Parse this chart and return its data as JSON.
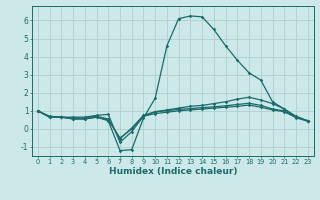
{
  "xlabel": "Humidex (Indice chaleur)",
  "background_color": "#cde8e8",
  "grid_color": "#b0cecf",
  "line_color": "#1a6b6b",
  "x": [
    0,
    1,
    2,
    3,
    4,
    5,
    6,
    7,
    8,
    9,
    10,
    11,
    12,
    13,
    14,
    15,
    16,
    17,
    18,
    19,
    20,
    21,
    22,
    23
  ],
  "line1": [
    1.0,
    0.7,
    0.65,
    0.55,
    0.55,
    0.65,
    0.45,
    -1.2,
    -1.15,
    0.6,
    1.7,
    4.6,
    6.1,
    6.25,
    6.2,
    5.5,
    4.6,
    3.8,
    3.1,
    2.7,
    1.5,
    1.1,
    0.65,
    0.45
  ],
  "line2": [
    1.0,
    0.65,
    0.65,
    0.65,
    0.65,
    0.75,
    0.8,
    -0.75,
    -0.15,
    0.7,
    0.95,
    1.05,
    1.15,
    1.25,
    1.3,
    1.4,
    1.5,
    1.65,
    1.75,
    1.6,
    1.4,
    1.1,
    0.7,
    0.45
  ],
  "line3": [
    1.0,
    0.65,
    0.65,
    0.6,
    0.6,
    0.7,
    0.55,
    -0.55,
    0.05,
    0.75,
    0.95,
    1.0,
    1.08,
    1.12,
    1.18,
    1.22,
    1.28,
    1.35,
    1.42,
    1.3,
    1.1,
    1.0,
    0.65,
    0.45
  ],
  "line4": [
    1.0,
    0.65,
    0.65,
    0.55,
    0.55,
    0.65,
    0.5,
    -0.5,
    0.0,
    0.7,
    0.85,
    0.92,
    1.0,
    1.05,
    1.1,
    1.15,
    1.2,
    1.25,
    1.32,
    1.2,
    1.05,
    0.95,
    0.62,
    0.42
  ],
  "ylim": [
    -1.5,
    6.8
  ],
  "xlim": [
    -0.5,
    23.5
  ],
  "yticks": [
    -1,
    0,
    1,
    2,
    3,
    4,
    5,
    6
  ],
  "xticks": [
    0,
    1,
    2,
    3,
    4,
    5,
    6,
    7,
    8,
    9,
    10,
    11,
    12,
    13,
    14,
    15,
    16,
    17,
    18,
    19,
    20,
    21,
    22,
    23
  ]
}
